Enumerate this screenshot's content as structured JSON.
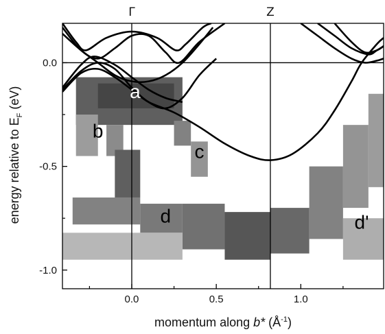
{
  "chart_data": {
    "type": "heatmap",
    "title": "",
    "xlabel_parts": [
      "momentum along ",
      "b*",
      " (Å",
      "-1",
      ")"
    ],
    "ylabel_parts": [
      "energy relative to E",
      "F",
      " (eV)"
    ],
    "xlim": [
      -0.41,
      1.49
    ],
    "ylim": [
      -1.09,
      0.19
    ],
    "xticks": [
      0.0,
      0.5,
      1.0
    ],
    "xtick_labels": [
      "0.0",
      "0.5",
      "1.0"
    ],
    "yticks": [
      0.0,
      -0.5,
      -1.0
    ],
    "ytick_labels": [
      "0.0",
      "-0.5",
      "-1.0"
    ],
    "high_symmetry_points": [
      {
        "label": "Γ",
        "x": 0.0
      },
      {
        "label": "Z",
        "x": 0.82
      }
    ],
    "fermi_level": 0.0,
    "grid": false,
    "calculated_bands": [
      {
        "points": [
          [
            -0.41,
            0.17
          ],
          [
            -0.3,
            0.06
          ],
          [
            -0.2,
            0.02
          ],
          [
            -0.1,
            0.07
          ],
          [
            0.0,
            0.13
          ],
          [
            0.1,
            0.13
          ],
          [
            0.2,
            0.05
          ],
          [
            0.28,
            0.0
          ],
          [
            0.4,
            0.1
          ],
          [
            0.55,
            0.19
          ]
        ]
      },
      {
        "points": [
          [
            -0.41,
            0.19
          ],
          [
            -0.33,
            0.1
          ],
          [
            -0.27,
            0.06
          ],
          [
            -0.15,
            0.12
          ],
          [
            0.0,
            0.15
          ],
          [
            0.15,
            0.12
          ],
          [
            0.26,
            0.06
          ],
          [
            0.32,
            0.09
          ],
          [
            0.42,
            0.17
          ],
          [
            0.47,
            0.19
          ]
        ]
      },
      {
        "points": [
          [
            -0.41,
            0.14
          ],
          [
            -0.3,
            0.06
          ],
          [
            -0.2,
            0.0
          ],
          [
            -0.1,
            -0.06
          ],
          [
            0.0,
            -0.09
          ],
          [
            0.1,
            -0.09
          ],
          [
            0.2,
            -0.06
          ],
          [
            0.3,
            0.0
          ],
          [
            0.4,
            0.09
          ],
          [
            0.48,
            0.17
          ]
        ]
      },
      {
        "points": [
          [
            -0.41,
            -0.13
          ],
          [
            -0.3,
            -0.04
          ],
          [
            -0.2,
            0.0
          ],
          [
            -0.1,
            -0.03
          ],
          [
            0.0,
            -0.12
          ],
          [
            0.1,
            -0.19
          ],
          [
            0.2,
            -0.22
          ],
          [
            0.3,
            -0.17
          ],
          [
            0.4,
            -0.06
          ],
          [
            0.5,
            0.02
          ]
        ]
      },
      {
        "points": [
          [
            -0.41,
            -0.14
          ],
          [
            -0.3,
            -0.05
          ],
          [
            -0.2,
            -0.03
          ],
          [
            -0.1,
            -0.07
          ],
          [
            0.0,
            -0.13
          ],
          [
            0.1,
            -0.19
          ],
          [
            0.25,
            -0.24
          ],
          [
            0.4,
            -0.31
          ],
          [
            0.55,
            -0.39
          ],
          [
            0.7,
            -0.45
          ],
          [
            0.82,
            -0.47
          ],
          [
            0.95,
            -0.44
          ],
          [
            1.1,
            -0.34
          ],
          [
            1.2,
            -0.23
          ],
          [
            1.3,
            -0.09
          ],
          [
            1.36,
            0.0
          ],
          [
            1.45,
            0.09
          ],
          [
            1.49,
            0.12
          ]
        ]
      },
      {
        "points": [
          [
            -0.41,
            -0.12
          ],
          [
            -0.3,
            -0.01
          ],
          [
            -0.22,
            0.03
          ],
          [
            -0.1,
            -0.01
          ],
          [
            0.0,
            -0.07
          ],
          [
            0.1,
            -0.13
          ],
          [
            0.2,
            -0.17
          ],
          [
            0.3,
            -0.19
          ]
        ]
      },
      {
        "points": [
          [
            1.0,
            0.19
          ],
          [
            1.1,
            0.13
          ],
          [
            1.2,
            0.07
          ],
          [
            1.3,
            0.02
          ],
          [
            1.38,
            0.0
          ],
          [
            1.45,
            0.01
          ],
          [
            1.49,
            0.02
          ]
        ]
      },
      {
        "points": [
          [
            1.1,
            0.19
          ],
          [
            1.2,
            0.13
          ],
          [
            1.3,
            0.07
          ],
          [
            1.4,
            0.04
          ],
          [
            1.45,
            0.06
          ],
          [
            1.49,
            0.08
          ]
        ]
      },
      {
        "points": [
          [
            1.2,
            0.19
          ],
          [
            1.3,
            0.1
          ],
          [
            1.38,
            0.05
          ],
          [
            1.45,
            0.06
          ],
          [
            1.49,
            0.08
          ]
        ]
      }
    ],
    "intensity_regions": [
      {
        "x": [
          -0.33,
          0.3
        ],
        "y": [
          -0.3,
          -0.07
        ],
        "intensity": 0.8
      },
      {
        "x": [
          -0.2,
          0.25
        ],
        "y": [
          -0.22,
          -0.1
        ],
        "intensity": 0.95
      },
      {
        "x": [
          -0.33,
          -0.2
        ],
        "y": [
          -0.45,
          -0.25
        ],
        "intensity": 0.45
      },
      {
        "x": [
          -0.15,
          -0.05
        ],
        "y": [
          -0.45,
          -0.3
        ],
        "intensity": 0.55
      },
      {
        "x": [
          -0.1,
          0.05
        ],
        "y": [
          -0.65,
          -0.42
        ],
        "intensity": 0.8
      },
      {
        "x": [
          0.25,
          0.35
        ],
        "y": [
          -0.4,
          -0.28
        ],
        "intensity": 0.6
      },
      {
        "x": [
          0.35,
          0.45
        ],
        "y": [
          -0.55,
          -0.38
        ],
        "intensity": 0.5
      },
      {
        "x": [
          -0.35,
          0.05
        ],
        "y": [
          -0.78,
          -0.65
        ],
        "intensity": 0.6
      },
      {
        "x": [
          0.05,
          0.3
        ],
        "y": [
          -0.82,
          -0.68
        ],
        "intensity": 0.65
      },
      {
        "x": [
          0.3,
          0.55
        ],
        "y": [
          -0.9,
          -0.68
        ],
        "intensity": 0.7
      },
      {
        "x": [
          0.55,
          0.82
        ],
        "y": [
          -0.95,
          -0.72
        ],
        "intensity": 0.85
      },
      {
        "x": [
          0.82,
          1.05
        ],
        "y": [
          -0.92,
          -0.7
        ],
        "intensity": 0.75
      },
      {
        "x": [
          1.05,
          1.25
        ],
        "y": [
          -0.85,
          -0.5
        ],
        "intensity": 0.6
      },
      {
        "x": [
          1.25,
          1.4
        ],
        "y": [
          -0.7,
          -0.3
        ],
        "intensity": 0.5
      },
      {
        "x": [
          1.4,
          1.49
        ],
        "y": [
          -0.6,
          -0.15
        ],
        "intensity": 0.45
      },
      {
        "x": [
          -0.41,
          0.3
        ],
        "y": [
          -0.95,
          -0.82
        ],
        "intensity": 0.3
      },
      {
        "x": [
          1.25,
          1.49
        ],
        "y": [
          -0.95,
          -0.75
        ],
        "intensity": 0.35
      }
    ],
    "annotations": [
      {
        "text": "a",
        "x": 0.02,
        "y": -0.17,
        "color": "#ffffff"
      },
      {
        "text": "b",
        "x": -0.2,
        "y": -0.36,
        "color": "#000000"
      },
      {
        "text": "c",
        "x": 0.4,
        "y": -0.46,
        "color": "#000000"
      },
      {
        "text": "d",
        "x": 0.2,
        "y": -0.77,
        "color": "#000000"
      },
      {
        "text": "d'",
        "x": 1.36,
        "y": -0.8,
        "color": "#000000"
      }
    ]
  }
}
